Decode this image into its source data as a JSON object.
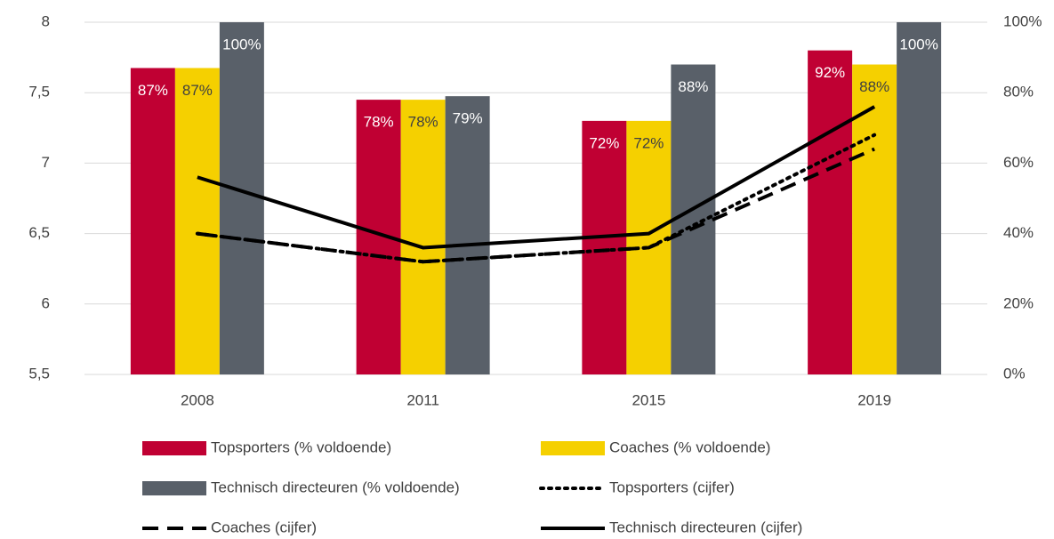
{
  "chart_data": {
    "type": "bar",
    "categories": [
      "2008",
      "2011",
      "2015",
      "2019"
    ],
    "series": [
      {
        "name": "Topsporters (% voldoende)",
        "type": "bar",
        "axis": "y2",
        "color": "#c00033",
        "label_color": "#ffffff",
        "values": [
          87,
          78,
          72,
          92
        ],
        "value_labels": [
          "87%",
          "78%",
          "72%",
          "92%"
        ]
      },
      {
        "name": "Coaches (% voldoende)",
        "type": "bar",
        "axis": "y2",
        "color": "#f5d000",
        "label_color": "#404040",
        "values": [
          87,
          78,
          72,
          88
        ],
        "value_labels": [
          "87%",
          "78%",
          "72%",
          "88%"
        ]
      },
      {
        "name": "Technisch directeuren (% voldoende)",
        "type": "bar",
        "axis": "y2",
        "color": "#596069",
        "label_color": "#ffffff",
        "values": [
          100,
          79,
          88,
          100
        ],
        "value_labels": [
          "100%",
          "79%",
          "88%",
          "100%"
        ]
      },
      {
        "name": "Topsporters (cijfer)",
        "type": "line",
        "dash": "dotted",
        "color": "#000000",
        "values": [
          6.5,
          6.3,
          6.4,
          7.2
        ]
      },
      {
        "name": "Coaches (cijfer)",
        "type": "line",
        "dash": "dashed",
        "color": "#000000",
        "values": [
          6.5,
          6.3,
          6.4,
          7.1
        ]
      },
      {
        "name": "Technisch directeuren (cijfer)",
        "type": "line",
        "dash": "solid",
        "color": "#000000",
        "values": [
          6.9,
          6.4,
          6.5,
          7.4
        ]
      }
    ],
    "ylim": [
      5.5,
      8
    ],
    "yticks": [
      {
        "value": 5.5,
        "label": "5,5"
      },
      6,
      {
        "value": 6.5,
        "label": "6,5"
      },
      7,
      {
        "value": 7.5,
        "label": "7,5"
      },
      8
    ],
    "y2lim": [
      0,
      100
    ],
    "y2ticks": [
      {
        "value": 0,
        "label": "0%"
      },
      {
        "value": 20,
        "label": "20%"
      },
      {
        "value": 40,
        "label": "40%"
      },
      {
        "value": 60,
        "label": "60%"
      },
      {
        "value": 80,
        "label": "80%"
      },
      {
        "value": 100,
        "label": "100%"
      }
    ],
    "grid": true,
    "legend": "bottom"
  }
}
